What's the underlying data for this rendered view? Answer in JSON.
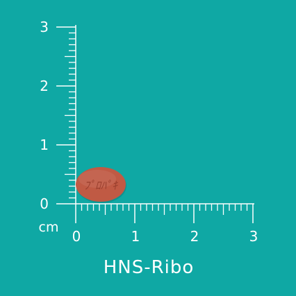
{
  "background_color": "#0fa8a4",
  "foreground_color": "#ffffff",
  "pill": {
    "color": "#c05a44",
    "imprint_color": "#9a3f2e",
    "imprint": "ﾌﾟﾛﾊﾟｷ"
  },
  "ruler": {
    "unit_label": "cm",
    "y_labels": [
      "0",
      "1",
      "2",
      "3"
    ],
    "x_labels": [
      "0",
      "1",
      "2",
      "3"
    ]
  },
  "caption": "HNS-Ribo"
}
